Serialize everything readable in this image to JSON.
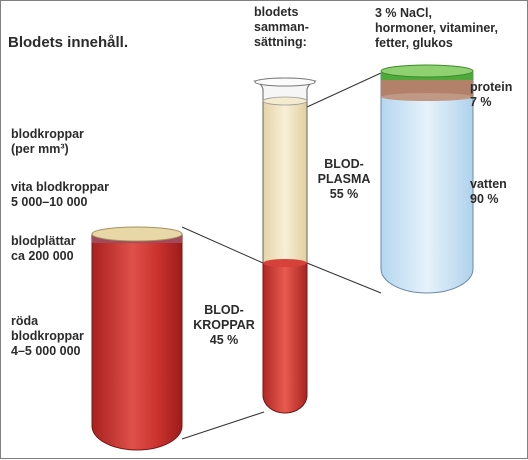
{
  "title": "Blodets innehåll.",
  "left_labels": {
    "blood_cells_line1": "blodkroppar",
    "blood_cells_line2": "(per mm³)",
    "white_line1": "vita blodkroppar",
    "white_line2": "5 000–10 000",
    "platelets_line1": "blodplättar",
    "platelets_line2": "ca 200 000",
    "red_line1": "röda",
    "red_line2": "blodkroppar",
    "red_line3": "4–5 000 000"
  },
  "middle_labels": {
    "composition_line1": "blodets",
    "composition_line2": "samman-",
    "composition_line3": "sättning:",
    "cells_line1": "BLOD-",
    "cells_line2": "KROPPAR",
    "cells_line3": "45 %",
    "plasma_line1": "BLOD-",
    "plasma_line2": "PLASMA",
    "plasma_line3": "55 %"
  },
  "right_labels": {
    "misc_line1": "3 % NaCl,",
    "misc_line2": "hormoner, vitaminer,",
    "misc_line3": "fetter, glukos",
    "protein_line1": "protein",
    "protein_line2": "7 %",
    "water_line1": "vatten",
    "water_line2": "90 %"
  },
  "colors": {
    "red_cells": "#c8302c",
    "plasma": "#efe3c0",
    "water": "#cfe6f7",
    "protein": "#b3806a",
    "misc_layer": "#4faa3c",
    "platelets": "#a04a5a",
    "white_cells": "#e8d8a8"
  }
}
